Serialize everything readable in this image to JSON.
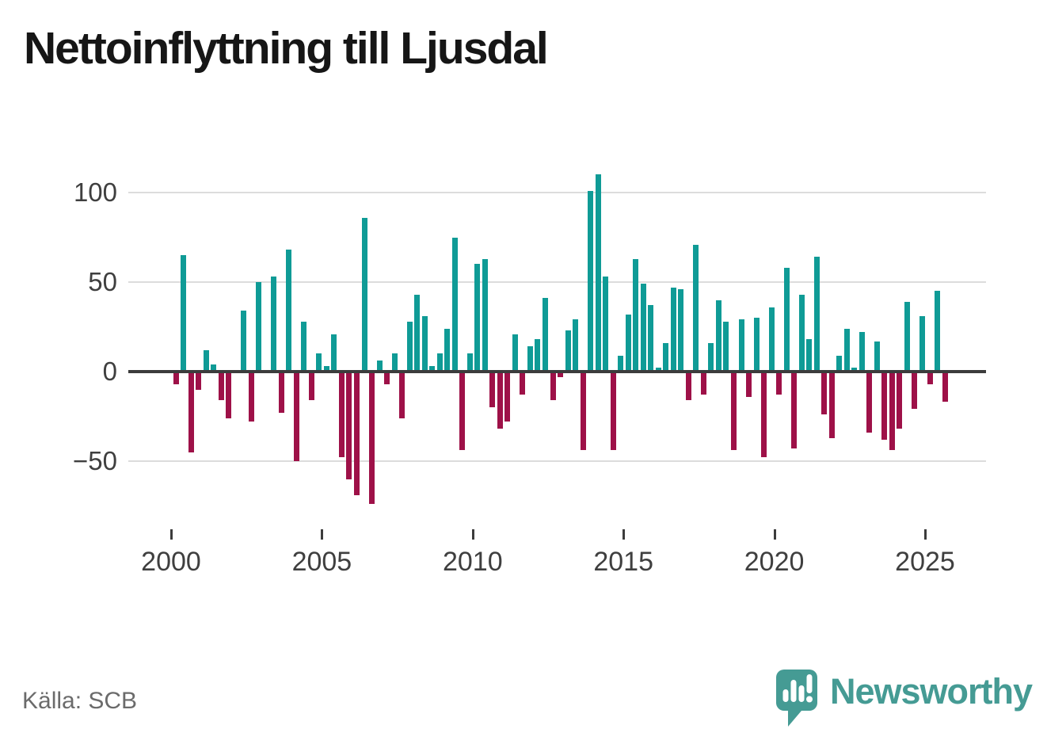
{
  "title": "Nettoinflyttning till Ljusdal",
  "source": "Källa: SCB",
  "branding": {
    "wordmark": "Newsworthy",
    "logo_icon": "speech-bubble-bar-chart-icon",
    "brand_color": "#459b94"
  },
  "colors": {
    "positive_bar": "#0f9b96",
    "negative_bar": "#9e1148",
    "axis_line": "#3c3c3c",
    "gridline": "#dcdcdc",
    "tick_label": "#3f3f3f",
    "title_text": "#161616",
    "source_text": "#6b6b6b"
  },
  "chart_data": {
    "type": "bar",
    "title": "Nettoinflyttning till Ljusdal",
    "xlabel": "",
    "ylabel": "",
    "grid": "horizontal",
    "legend": "none",
    "ylim": [
      -80,
      120
    ],
    "y_ticks": [
      100,
      50,
      0,
      -50
    ],
    "y_tick_labels": [
      "100",
      "50",
      "0",
      "−50"
    ],
    "x_ticks": [
      {
        "label": "2000",
        "slot": 0
      },
      {
        "label": "2005",
        "slot": 20
      },
      {
        "label": "2010",
        "slot": 40
      },
      {
        "label": "2015",
        "slot": 60
      },
      {
        "label": "2020",
        "slot": 80
      },
      {
        "label": "2025",
        "slot": 100
      }
    ],
    "categories": [
      "2000 Q1",
      "2000 Q2",
      "2000 Q3",
      "2000 Q4",
      "2001 Q1",
      "2001 Q2",
      "2001 Q3",
      "2001 Q4",
      "2002 Q1",
      "2002 Q2",
      "2002 Q3",
      "2002 Q4",
      "2003 Q1",
      "2003 Q2",
      "2003 Q3",
      "2003 Q4",
      "2004 Q1",
      "2004 Q2",
      "2004 Q3",
      "2004 Q4",
      "2005 Q1",
      "2005 Q2",
      "2005 Q3",
      "2005 Q4",
      "2006 Q1",
      "2006 Q2",
      "2006 Q3",
      "2006 Q4",
      "2007 Q1",
      "2007 Q2",
      "2007 Q3",
      "2007 Q4",
      "2008 Q1",
      "2008 Q2",
      "2008 Q3",
      "2008 Q4",
      "2009 Q1",
      "2009 Q2",
      "2009 Q3",
      "2009 Q4",
      "2010 Q1",
      "2010 Q2",
      "2010 Q3",
      "2010 Q4",
      "2011 Q1",
      "2011 Q2",
      "2011 Q3",
      "2011 Q4",
      "2012 Q1",
      "2012 Q2",
      "2012 Q3",
      "2012 Q4",
      "2013 Q1",
      "2013 Q2",
      "2013 Q3",
      "2013 Q4",
      "2014 Q1",
      "2014 Q2",
      "2014 Q3",
      "2014 Q4",
      "2015 Q1",
      "2015 Q2",
      "2015 Q3",
      "2015 Q4",
      "2016 Q1",
      "2016 Q2",
      "2016 Q3",
      "2016 Q4",
      "2017 Q1",
      "2017 Q2",
      "2017 Q3",
      "2017 Q4",
      "2018 Q1",
      "2018 Q2",
      "2018 Q3",
      "2018 Q4",
      "2019 Q1",
      "2019 Q2",
      "2019 Q3",
      "2019 Q4",
      "2020 Q1",
      "2020 Q2",
      "2020 Q3",
      "2020 Q4",
      "2021 Q1",
      "2021 Q2",
      "2021 Q3",
      "2021 Q4",
      "2022 Q1",
      "2022 Q2",
      "2022 Q3",
      "2022 Q4",
      "2023 Q1",
      "2023 Q2",
      "2023 Q3",
      "2023 Q4",
      "2024 Q1",
      "2024 Q2",
      "2024 Q3",
      "2024 Q4",
      "2025 Q1",
      "2025 Q2",
      "2025 Q3"
    ],
    "values": [
      -7,
      65,
      -45,
      -10,
      12,
      4,
      -16,
      -26,
      0,
      34,
      -28,
      50,
      -1,
      53,
      -23,
      68,
      -50,
      28,
      -16,
      10,
      3,
      21,
      -48,
      -60,
      -69,
      86,
      -74,
      6,
      -7,
      10,
      -26,
      28,
      43,
      31,
      3,
      10,
      24,
      75,
      -44,
      10,
      60,
      63,
      -20,
      -32,
      -28,
      21,
      -13,
      14,
      18,
      41,
      -16,
      -3,
      23,
      29,
      -44,
      101,
      110,
      53,
      -44,
      9,
      32,
      63,
      49,
      37,
      2,
      16,
      47,
      46,
      -16,
      71,
      -13,
      16,
      40,
      28,
      -44,
      29,
      -14,
      30,
      -48,
      36,
      -13,
      58,
      -43,
      43,
      18,
      64,
      -24,
      -37,
      9,
      24,
      2,
      22,
      -34,
      17,
      -38,
      -44,
      -32,
      39,
      -21,
      31,
      -7,
      45,
      -17
    ]
  }
}
